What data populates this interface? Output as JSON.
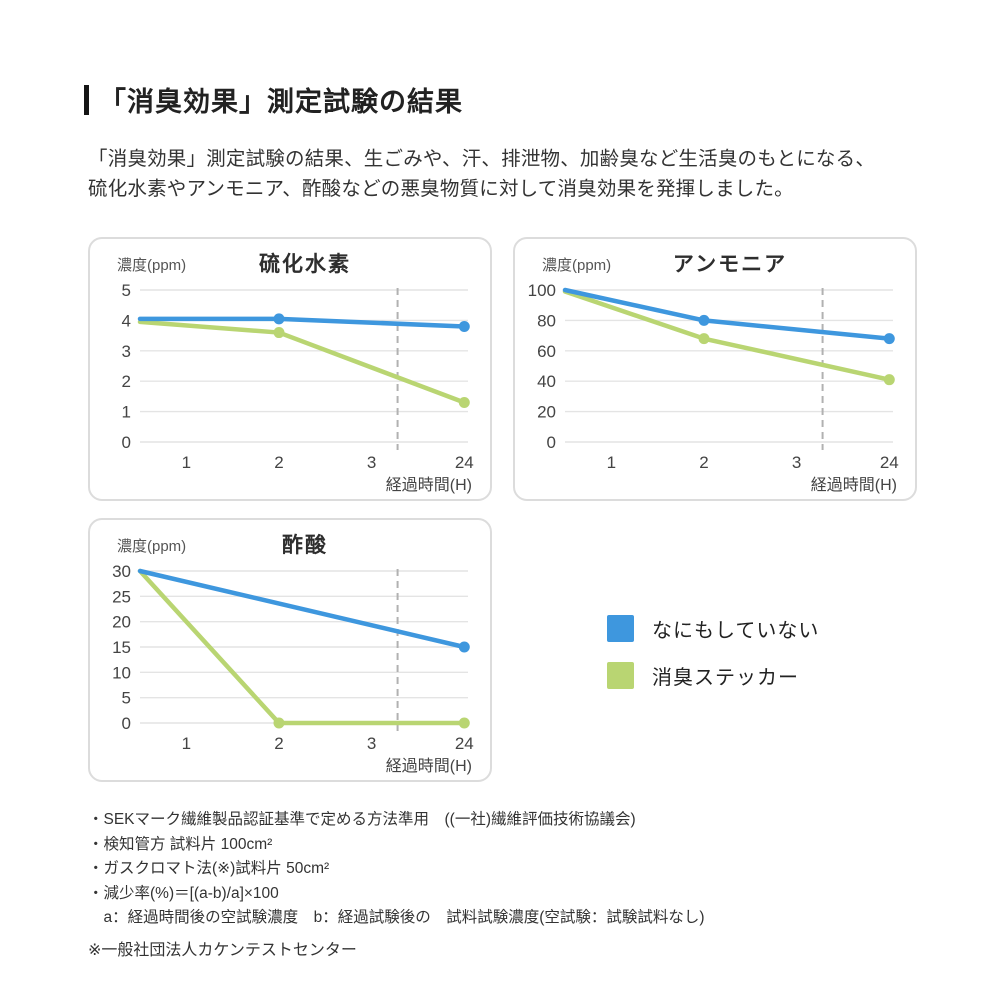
{
  "page": {
    "title": "「消臭効果」測定試験の結果",
    "intro_line1": "「消臭効果」測定試験の結果、生ごみや、汗、排泄物、加齢臭など生活臭のもとになる、",
    "intro_line2": "硫化水素やアンモニア、酢酸などの悪臭物質に対して消臭効果を発揮しました。"
  },
  "colors": {
    "untreated": "#3e97de",
    "sticker": "#b9d572",
    "gridline": "#e4e4e4",
    "axis_break": "#b1b1b1",
    "tick_text": "#444444"
  },
  "legend": {
    "items": [
      {
        "key": "untreated",
        "label": "なにもしていない",
        "color": "#3e97de"
      },
      {
        "key": "sticker",
        "label": "消臭ステッカー",
        "color": "#b9d572"
      }
    ]
  },
  "chart_data": [
    {
      "type": "line",
      "title": "硫化水素",
      "ylabel": "濃度(ppm)",
      "xlabel": "経過時間(H)",
      "x_tick_labels": [
        "1",
        "2",
        "3",
        "24"
      ],
      "ylim": [
        0,
        5
      ],
      "y_ticks": [
        0,
        1,
        2,
        3,
        4,
        5
      ],
      "axis_break_pos": 3.28,
      "grid": true,
      "series": [
        {
          "key": "sticker",
          "name": "消臭ステッカー",
          "color": "#b9d572",
          "hours": [
            0,
            2,
            24
          ],
          "pos": [
            0.5,
            2,
            4
          ],
          "values": [
            3.95,
            3.6,
            1.3
          ],
          "dots": [
            false,
            true,
            true
          ]
        },
        {
          "key": "untreated",
          "name": "なにもしていない",
          "color": "#3e97de",
          "hours": [
            0,
            2,
            24
          ],
          "pos": [
            0.5,
            2,
            4
          ],
          "values": [
            4.05,
            4.05,
            3.8
          ],
          "dots": [
            false,
            true,
            true
          ]
        }
      ]
    },
    {
      "type": "line",
      "title": "アンモニア",
      "ylabel": "濃度(ppm)",
      "xlabel": "経過時間(H)",
      "x_tick_labels": [
        "1",
        "2",
        "3",
        "24"
      ],
      "ylim": [
        0,
        100
      ],
      "y_ticks": [
        0,
        20,
        40,
        60,
        80,
        100
      ],
      "axis_break_pos": 3.28,
      "grid": true,
      "series": [
        {
          "key": "sticker",
          "name": "消臭ステッカー",
          "color": "#b9d572",
          "hours": [
            0,
            2,
            24
          ],
          "pos": [
            0.5,
            2,
            4
          ],
          "values": [
            99,
            68,
            41
          ],
          "dots": [
            false,
            true,
            true
          ]
        },
        {
          "key": "untreated",
          "name": "なにもしていない",
          "color": "#3e97de",
          "hours": [
            0,
            2,
            24
          ],
          "pos": [
            0.5,
            2,
            4
          ],
          "values": [
            100,
            80,
            68
          ],
          "dots": [
            false,
            true,
            true
          ]
        }
      ]
    },
    {
      "type": "line",
      "title": "酢酸",
      "ylabel": "濃度(ppm)",
      "xlabel": "経過時間(H)",
      "x_tick_labels": [
        "1",
        "2",
        "3",
        "24"
      ],
      "ylim": [
        0,
        30
      ],
      "y_ticks": [
        0,
        5,
        10,
        15,
        20,
        25,
        30
      ],
      "axis_break_pos": 3.28,
      "grid": true,
      "series": [
        {
          "key": "sticker",
          "name": "消臭ステッカー",
          "color": "#b9d572",
          "hours": [
            0,
            2,
            24
          ],
          "pos": [
            0.5,
            2,
            4
          ],
          "values": [
            30,
            0,
            0
          ],
          "dots": [
            false,
            true,
            true
          ]
        },
        {
          "key": "untreated",
          "name": "なにもしていない",
          "color": "#3e97de",
          "hours": [
            0,
            24
          ],
          "pos": [
            0.5,
            4
          ],
          "values": [
            30,
            15
          ],
          "dots": [
            false,
            true
          ]
        }
      ]
    }
  ],
  "footnotes": {
    "lines": [
      "・SEKマーク繊維製品認証基準で定める方法準用　((一社)繊維評価技術協議会)",
      "・検知管方 試料片 100cm²",
      "・ガスクロマト法(※)試料片 50cm²",
      "・減少率(%)＝[(a-b)/a]×100",
      "　a：経過時間後の空試験濃度　b：経過試験後の　試料試験濃度(空試験：試験試料なし)"
    ],
    "source": "※一般社団法人カケンテストセンター"
  }
}
